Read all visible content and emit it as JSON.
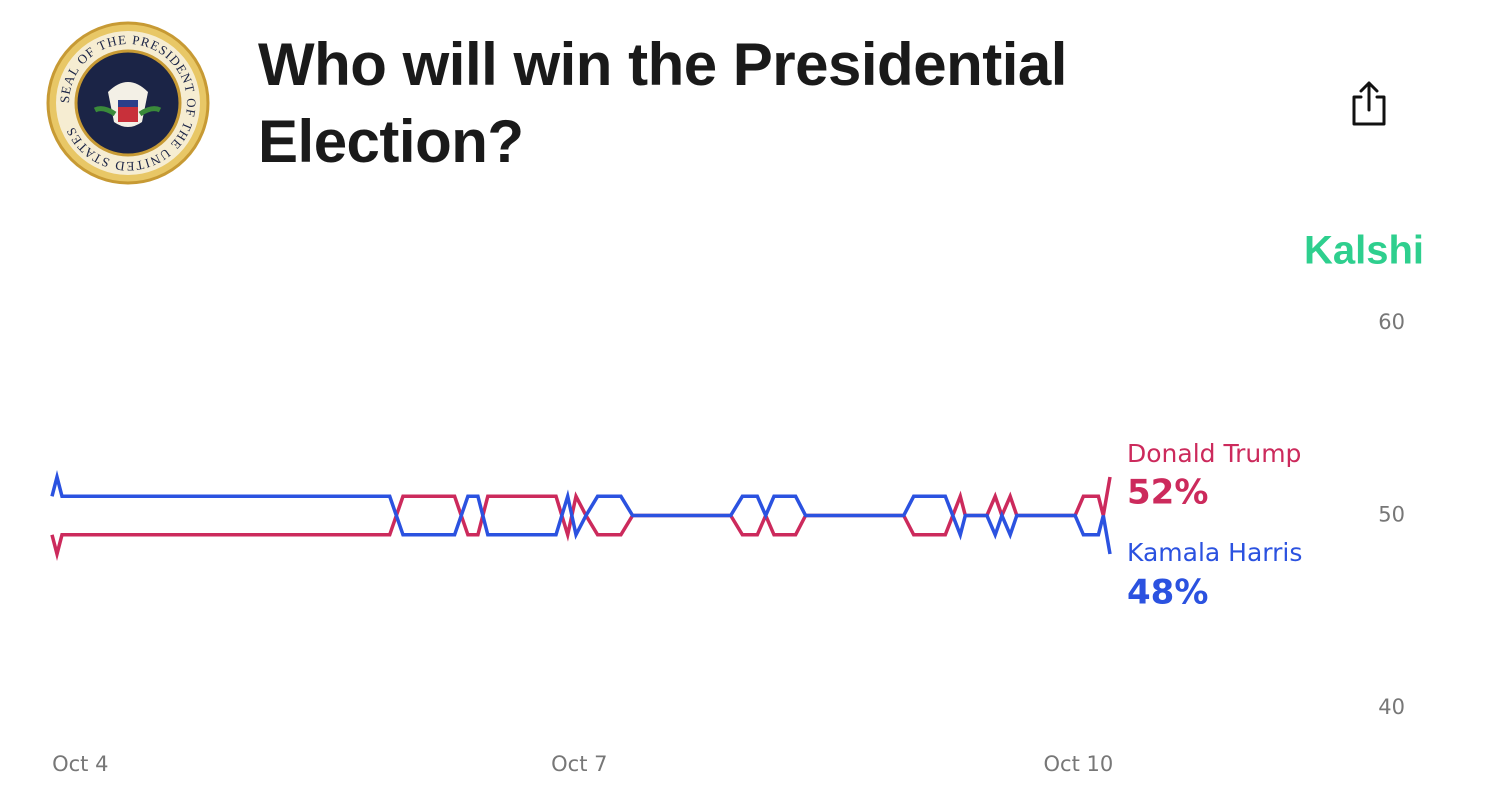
{
  "header": {
    "seal_text": "SEAL OF THE PRESIDENT OF THE UNITED STATES"
  },
  "chart_data": {
    "type": "line",
    "title": "Who will win the Presidential Election?",
    "brand": "Kalshi",
    "x": [
      3.83,
      3.86,
      3.89,
      5.86,
      5.94,
      6.25,
      6.33,
      6.39,
      6.45,
      6.86,
      6.93,
      6.98,
      7.04,
      7.11,
      7.25,
      7.32,
      7.91,
      7.98,
      8.07,
      8.12,
      8.17,
      8.3,
      8.36,
      8.95,
      9.01,
      9.2,
      9.29,
      9.32,
      9.45,
      9.5,
      9.54,
      9.59,
      9.63,
      9.98,
      10.03,
      10.12,
      10.15,
      10.19
    ],
    "series": [
      {
        "name": "Donald Trump",
        "color": "#cc2a5c",
        "values": [
          49,
          48,
          49,
          49,
          51,
          51,
          49,
          49,
          51,
          51,
          49,
          51,
          50,
          49,
          49,
          50,
          50,
          49,
          49,
          50,
          49,
          49,
          50,
          50,
          49,
          49,
          51,
          50,
          50,
          51,
          50,
          51,
          50,
          50,
          51,
          51,
          50,
          52
        ],
        "value_labels": [
          null,
          null,
          null,
          null,
          null,
          null,
          null,
          null,
          null,
          null,
          null,
          null,
          null,
          null,
          null,
          null,
          null,
          null,
          null,
          null,
          null,
          null,
          null,
          null,
          null,
          null,
          null,
          null,
          null,
          null,
          null,
          null,
          null,
          null,
          null,
          null,
          null,
          "52%"
        ]
      },
      {
        "name": "Kamala Harris",
        "color": "#2b52e0",
        "values": [
          51,
          52,
          51,
          51,
          49,
          49,
          51,
          51,
          49,
          49,
          51,
          49,
          50,
          51,
          51,
          50,
          50,
          51,
          51,
          50,
          51,
          51,
          50,
          50,
          51,
          51,
          49,
          50,
          50,
          49,
          50,
          49,
          50,
          50,
          49,
          49,
          50,
          48
        ],
        "value_labels": [
          null,
          null,
          null,
          null,
          null,
          null,
          null,
          null,
          null,
          null,
          null,
          null,
          null,
          null,
          null,
          null,
          null,
          null,
          null,
          null,
          null,
          null,
          null,
          null,
          null,
          null,
          null,
          null,
          null,
          null,
          null,
          null,
          null,
          null,
          null,
          null,
          null,
          "48%"
        ]
      }
    ],
    "xlim": [
      3.83,
      10.19
    ],
    "xticks": [
      {
        "value": 4,
        "label": "Oct 4"
      },
      {
        "value": 7,
        "label": "Oct 7"
      },
      {
        "value": 10,
        "label": "Oct 10"
      }
    ],
    "ylim": [
      40,
      60
    ],
    "yticks": [
      40,
      50,
      60
    ],
    "grid": false
  }
}
